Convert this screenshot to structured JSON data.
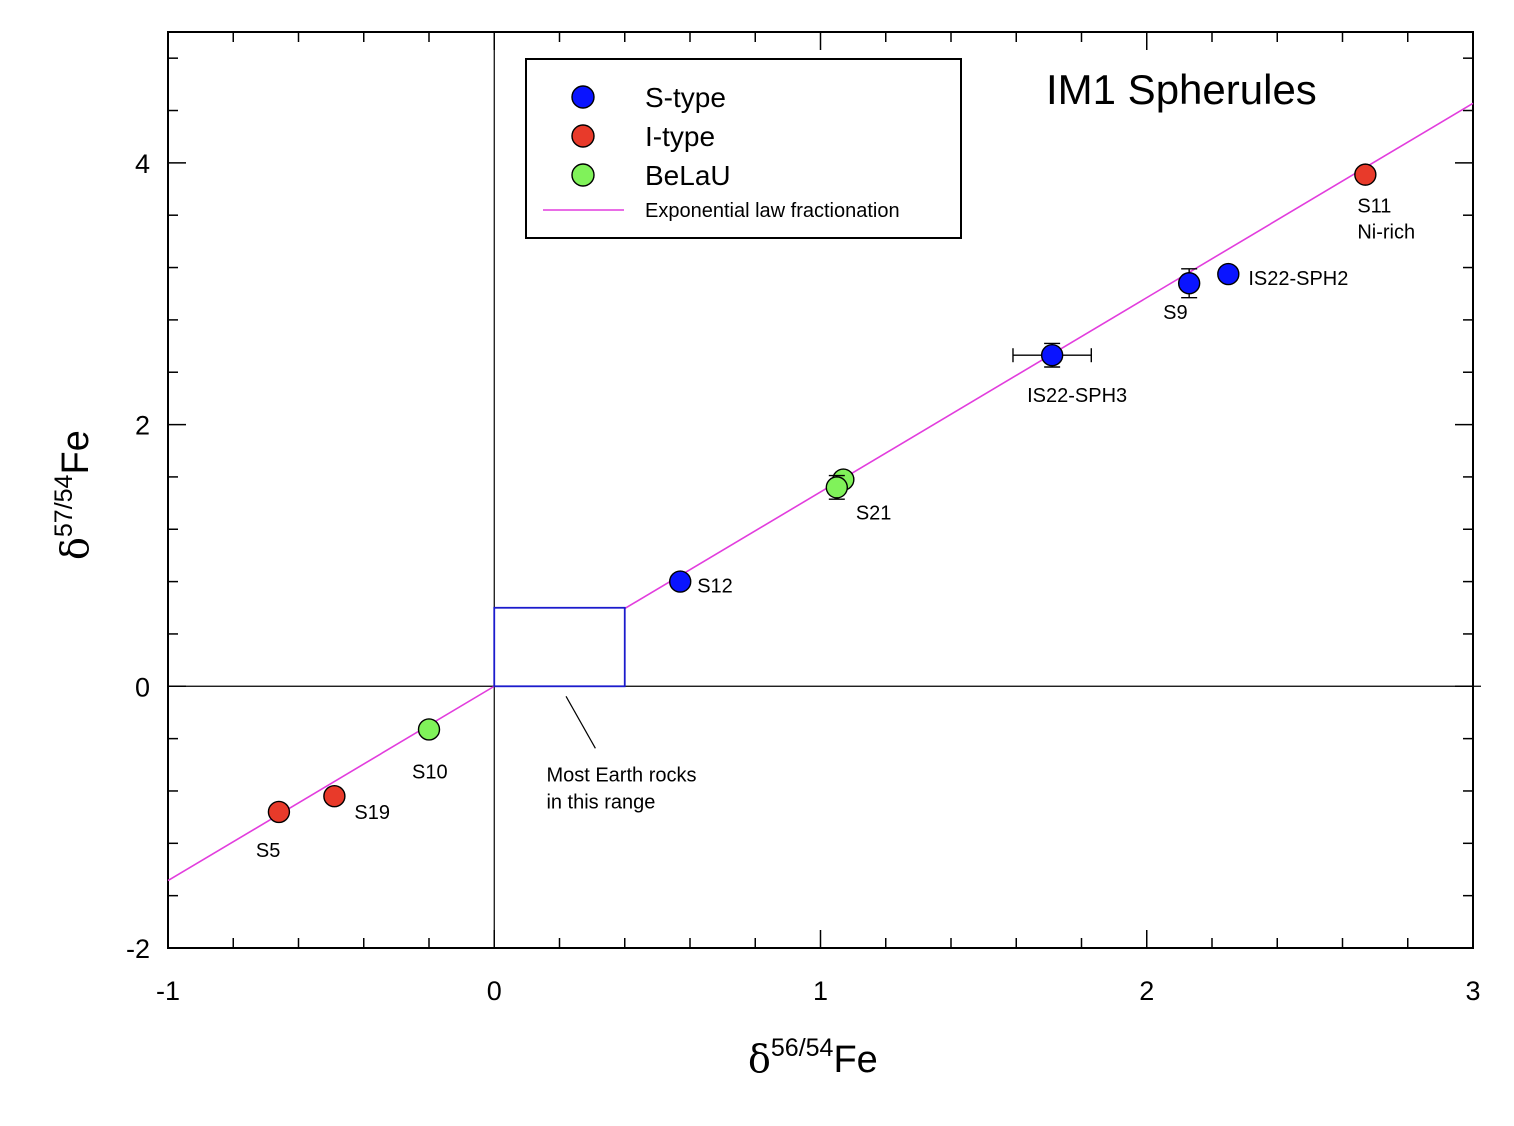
{
  "chart_data": {
    "type": "scatter",
    "title": "IM1 Spherules",
    "xlabel": {
      "prefix": "δ",
      "sup": "56/54",
      "suffix": "Fe"
    },
    "ylabel": {
      "prefix": "δ",
      "sup": "57/54",
      "suffix": "Fe"
    },
    "xlim": [
      -1,
      3
    ],
    "ylim": [
      -2,
      5
    ],
    "xticks": [
      -1,
      0,
      1,
      2,
      3
    ],
    "yticks": [
      -2,
      0,
      2,
      4
    ],
    "xtick_labels": [
      "-1",
      "0",
      "1",
      "2",
      "3"
    ],
    "ytick_labels": [
      "-2",
      "0",
      "2",
      "4"
    ],
    "colors": {
      "S-type": "#0a14ff",
      "I-type": "#e83a2a",
      "BeLaU": "#80f25a",
      "line": "#e23ddd",
      "box": "#1b1bcc"
    },
    "series": [
      {
        "name": "S-type",
        "color_key": "S-type",
        "points": [
          {
            "x": 0.57,
            "y": 0.8,
            "label": "S12"
          },
          {
            "x": 1.71,
            "y": 2.53,
            "label": "IS22-SPH3",
            "xerr": 0.12,
            "yerr": 0.09
          },
          {
            "x": 2.13,
            "y": 3.08,
            "label": "S9",
            "yerr": 0.11
          },
          {
            "x": 2.25,
            "y": 3.15,
            "label": "IS22-SPH2"
          }
        ]
      },
      {
        "name": "I-type",
        "color_key": "I-type",
        "points": [
          {
            "x": -0.66,
            "y": -0.96,
            "label": "S5"
          },
          {
            "x": -0.49,
            "y": -0.84,
            "label": "S19"
          },
          {
            "x": 2.67,
            "y": 3.91,
            "label": "S11",
            "label2": "Ni-rich"
          }
        ]
      },
      {
        "name": "BeLaU",
        "color_key": "BeLaU",
        "points": [
          {
            "x": -0.2,
            "y": -0.33,
            "label": "S10"
          },
          {
            "x": 1.07,
            "y": 1.58
          },
          {
            "x": 1.05,
            "y": 1.52,
            "label": "S21",
            "yerr": 0.09
          }
        ]
      }
    ],
    "fit_line": {
      "name": "Exponential law fractionation",
      "slope": 1.485,
      "x_range": [
        -1,
        3
      ]
    },
    "earth_box": {
      "x_range": [
        0,
        0.4
      ],
      "y_range": [
        0,
        0.6
      ],
      "annotation": [
        "Most Earth rocks",
        "in this range"
      ]
    }
  }
}
